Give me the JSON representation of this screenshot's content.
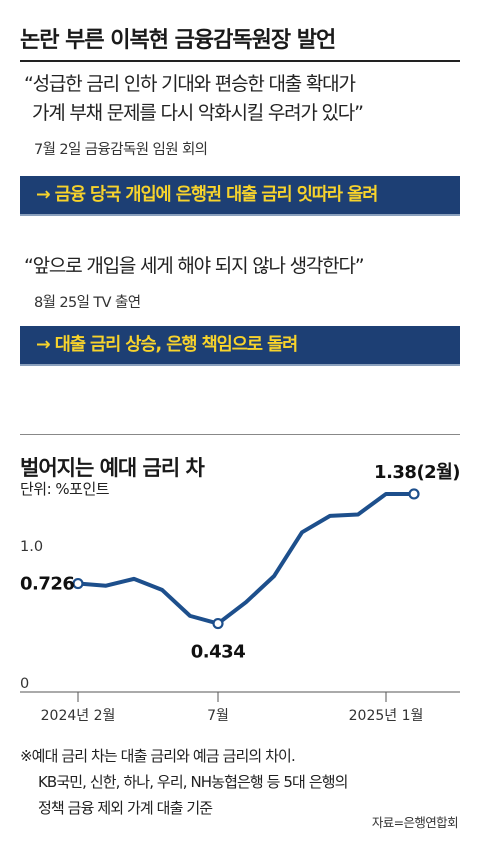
{
  "header": {
    "title": "논란 부른 이복현 금융감독원장 발언"
  },
  "statements": [
    {
      "quote_lines": [
        "“성급한 금리 인하 기대와  편승한 대출 확대가",
        "가계 부채 문제를 다시 악화시킬 우려가 있다”"
      ],
      "context": "7월 2일 금융감독원 임원 회의",
      "banner": "→ 금융 당국 개입에 은행권 대출 금리 잇따라 올려"
    },
    {
      "quote_lines": [
        "“앞으로 개입을 세게 해야 되지 않나 생각한다”"
      ],
      "context": "8월 25일 TV 출연",
      "banner": "→ 대출 금리 상승, 은행 책임으로 돌려"
    }
  ],
  "colors": {
    "banner_bg": "#1d3f74",
    "banner_text": "#f7d32c",
    "line": "#1d4f8c"
  },
  "chart_data": {
    "type": "line",
    "title": "벌어지는 예대 금리 차",
    "unit": "단위: %포인트",
    "x": [
      "2024-02",
      "2024-03",
      "2024-04",
      "2024-05",
      "2024-06",
      "2024-07",
      "2024-08",
      "2024-09",
      "2024-10",
      "2024-11",
      "2024-12",
      "2025-01",
      "2025-02"
    ],
    "values": [
      0.726,
      0.71,
      0.76,
      0.68,
      0.49,
      0.434,
      0.59,
      0.78,
      1.1,
      1.22,
      1.23,
      1.38,
      1.38
    ],
    "ylim": [
      0,
      1.6
    ],
    "y_ticks": [
      {
        "value": 0,
        "label": "0"
      },
      {
        "value": 1.0,
        "label": "1.0"
      }
    ],
    "x_ticks": [
      {
        "index": 0,
        "label": "2024년 2월"
      },
      {
        "index": 5,
        "label": "7월"
      },
      {
        "index": 11,
        "label": "2025년 1월"
      }
    ],
    "annotations": [
      {
        "index": 0,
        "label": "0.726"
      },
      {
        "index": 5,
        "label": "0.434"
      },
      {
        "index": 12,
        "label": "1.38(2월)"
      }
    ]
  },
  "footnote_lines": [
    "※예대 금리 차는 대출 금리와 예금 금리의 차이.",
    "KB국민, 신한, 하나, 우리, NH농협은행 등 5대 은행의",
    "정책 금융 제외 가계 대출 기준"
  ],
  "source": "자료=은행연합회"
}
